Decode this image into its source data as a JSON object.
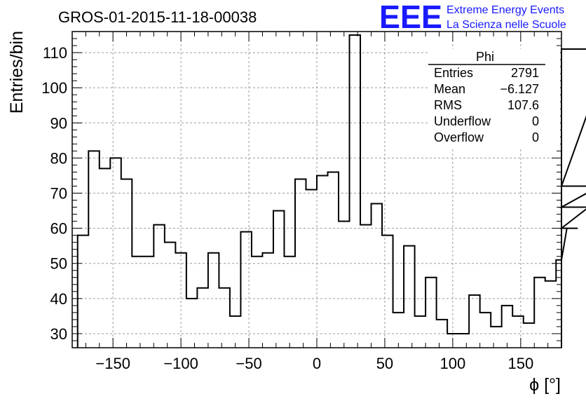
{
  "chart_data": {
    "type": "histogram",
    "title": "GROS-01-2015-11-18-00038",
    "xlabel": "ϕ [°]",
    "ylabel": "Entries/bin",
    "xlim": [
      -180,
      180
    ],
    "ylim": [
      26,
      116
    ],
    "grid": true,
    "bin_width": 8,
    "bin_start": -176,
    "values": [
      58,
      82,
      77,
      80,
      74,
      52,
      52,
      61,
      56,
      53,
      40,
      43,
      53,
      43,
      35,
      59,
      52,
      53,
      65,
      52,
      74,
      71,
      75,
      76,
      62,
      115,
      61,
      67,
      58,
      36,
      55,
      35,
      46,
      34,
      30,
      30,
      41,
      36,
      32,
      38,
      35,
      33,
      46,
      45,
      51,
      60,
      60,
      66,
      72,
      111
    ],
    "x_ticks": [
      -150,
      -100,
      -50,
      0,
      50,
      100,
      150
    ],
    "x_tick_labels": [
      "−150",
      "−100",
      "−50",
      "0",
      "50",
      "100",
      "150"
    ],
    "y_ticks": [
      30,
      40,
      50,
      60,
      70,
      80,
      90,
      100,
      110
    ],
    "y_tick_labels": [
      "30",
      "40",
      "50",
      "60",
      "70",
      "80",
      "90",
      "100",
      "110"
    ],
    "stats_box": {
      "title": "Phi",
      "rows": [
        {
          "label": "Entries",
          "value": "2791"
        },
        {
          "label": "Mean",
          "value": "−6.127"
        },
        {
          "label": "RMS",
          "value": "107.6"
        },
        {
          "label": "Underflow",
          "value": "0"
        },
        {
          "label": "Overflow",
          "value": "0"
        }
      ],
      "placement": "top-right"
    }
  },
  "logo": {
    "mark": "EEE",
    "line1": "Extreme Energy Events",
    "line2": "La Scienza nelle Scuole",
    "color": "#1a1aff"
  }
}
